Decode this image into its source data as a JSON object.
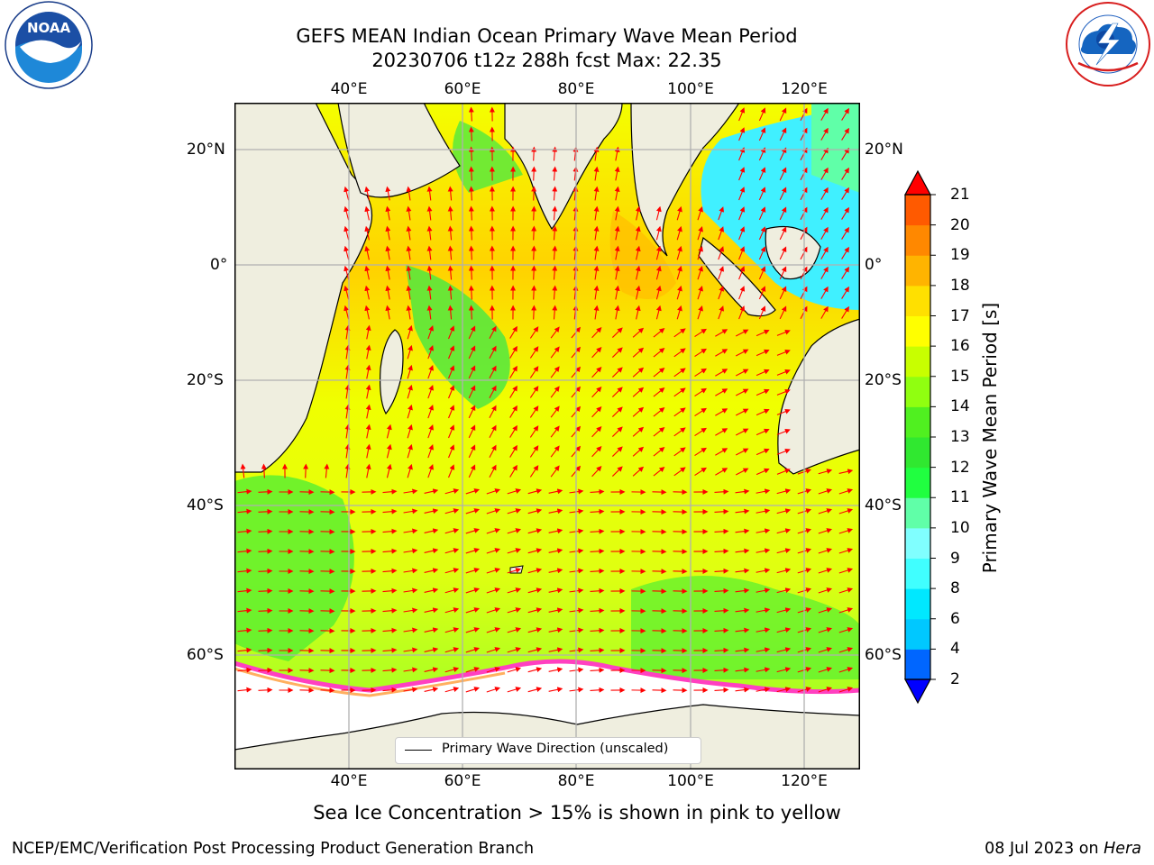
{
  "title": {
    "line1": "GEFS MEAN Indian Ocean Primary Wave Mean Period",
    "line2": "20230706 t12z 288h fcst   Max: 22.35"
  },
  "axes": {
    "lon_labels": [
      "40°E",
      "60°E",
      "80°E",
      "100°E",
      "120°E"
    ],
    "lat_labels": [
      "20°N",
      "0°",
      "20°S",
      "40°S",
      "60°S"
    ]
  },
  "colorbar": {
    "label": "Primary Wave Mean Period [s]",
    "ticks": [
      "2",
      "4",
      "6",
      "8",
      "9",
      "10",
      "11",
      "12",
      "13",
      "14",
      "15",
      "16",
      "17",
      "18",
      "19",
      "20",
      "21"
    ],
    "colors": [
      "#0000ff",
      "#0066ff",
      "#00c8ff",
      "#00e8ff",
      "#40ffff",
      "#80ffff",
      "#60ffa8",
      "#20ff40",
      "#30e830",
      "#50f020",
      "#90ff10",
      "#c8ff00",
      "#ffff00",
      "#ffe000",
      "#ffb400",
      "#ff8800",
      "#ff5a00",
      "#ff2800",
      "#e00000"
    ],
    "under_color": "#0000ff",
    "over_color": "#ff0000"
  },
  "legend": {
    "label": "Primary Wave Direction (unscaled)"
  },
  "caption": "Sea Ice Concentration > 15% is shown in pink to yellow",
  "footer": {
    "left": "NCEP/EMC/Verification Post Processing Product Generation Branch",
    "right_prefix": "08 Jul 2023 on ",
    "right_host": "Hera"
  },
  "logos": {
    "noaa_text": "NOAA",
    "noaa_ring": "NATIONAL OCEANIC AND ATMOSPHERIC ADMINISTRATION · U.S. DEPARTMENT OF COMMERCE",
    "nws_ring": "NATIONAL WEATHER SERVICE"
  },
  "map_colors": {
    "land": "#efeedf",
    "ice": "#ffffff",
    "arrow": "#ff0000",
    "grid": "#b0b0b0"
  }
}
